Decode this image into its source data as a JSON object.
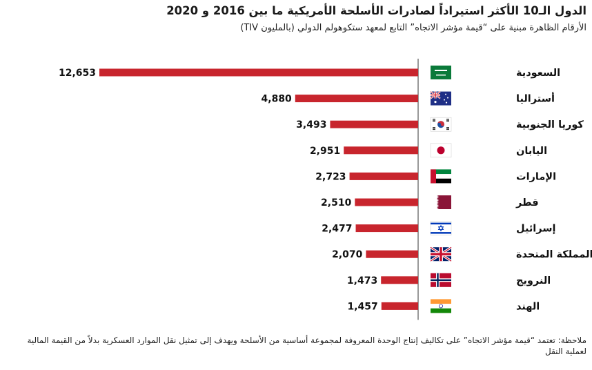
{
  "title": "الدول الـ10 الأكثر استيراداً لصادرات الأسلحة الأمريكية ما بين 2016 و 2020",
  "subtitle": "الأرقام الظاهرة مبنية على “قيمة مؤشر الاتجاه” التابع لمعهد ستكوهولم الدولي (بالمليون TIV)",
  "note": "ملاحظة: تعتمد “قيمة مؤشر الاتجاه” على تكاليف إنتاج الوحدة المعروفة لمجموعة أساسية من الأسلحة ويهدف إلى تمثيل نقل الموارد العسكرية بدلاً من القيمة المالية لعملية النقل",
  "colors": {
    "bar": "#c8252d",
    "axis": "#555555"
  },
  "chart_data": {
    "type": "bar",
    "orientation": "horizontal",
    "categories": [
      "السعودية",
      "أستراليا",
      "كوريا الجنوبية",
      "اليابان",
      "الإمارات",
      "قطر",
      "إسرائيل",
      "المملكة المتحدة",
      "النرويج",
      "الهند"
    ],
    "values": [
      12653,
      4880,
      3493,
      2951,
      2723,
      2510,
      2477,
      2070,
      1473,
      1457
    ],
    "value_labels": [
      "12,653",
      "4,880",
      "3,493",
      "2,951",
      "2,723",
      "2,510",
      "2,477",
      "2,070",
      "1,473",
      "1,457"
    ],
    "flag_icons": [
      "saudi-arabia-flag-icon",
      "australia-flag-icon",
      "south-korea-flag-icon",
      "japan-flag-icon",
      "uae-flag-icon",
      "qatar-flag-icon",
      "israel-flag-icon",
      "uk-flag-icon",
      "norway-flag-icon",
      "india-flag-icon"
    ],
    "xlim": [
      0,
      12653
    ],
    "grid": false
  }
}
